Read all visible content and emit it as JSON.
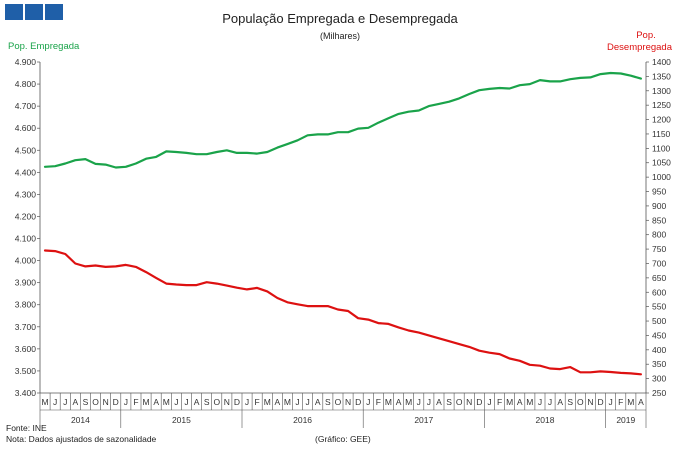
{
  "chart_data": {
    "type": "line",
    "title": "População Empregada e Desempregada",
    "subtitle": "(Milhares)",
    "left_axis_label": "Pop. Empregada",
    "right_axis_label_line1": "Pop.",
    "right_axis_label_line2": "Desempregada",
    "left_ylim": [
      3400,
      4900
    ],
    "left_ticks": [
      "3.400",
      "3.500",
      "3.600",
      "3.700",
      "3.800",
      "3.900",
      "4.000",
      "4.100",
      "4.200",
      "4.300",
      "4.400",
      "4.500",
      "4.600",
      "4.700",
      "4.800",
      "4.900"
    ],
    "right_ylim": [
      250,
      1400
    ],
    "right_ticks": [
      "250",
      "300",
      "350",
      "400",
      "450",
      "500",
      "550",
      "600",
      "650",
      "700",
      "750",
      "800",
      "850",
      "900",
      "950",
      "1000",
      "1050",
      "1100",
      "1150",
      "1200",
      "1250",
      "1300",
      "1350",
      "1400"
    ],
    "months": [
      "M",
      "J",
      "J",
      "A",
      "S",
      "O",
      "N",
      "D",
      "J",
      "F",
      "M",
      "A",
      "M",
      "J",
      "J",
      "A",
      "S",
      "O",
      "N",
      "D",
      "J",
      "F",
      "M",
      "A",
      "M",
      "J",
      "J",
      "A",
      "S",
      "O",
      "N",
      "D",
      "J",
      "F",
      "M",
      "A",
      "M",
      "J",
      "J",
      "A",
      "S",
      "O",
      "N",
      "D",
      "J",
      "F",
      "M",
      "A",
      "M",
      "J",
      "J",
      "A",
      "S",
      "O",
      "N",
      "D",
      "J",
      "F",
      "M",
      "A"
    ],
    "years": [
      {
        "label": "2014",
        "start": 0,
        "end": 7
      },
      {
        "label": "2015",
        "start": 8,
        "end": 19
      },
      {
        "label": "2016",
        "start": 20,
        "end": 31
      },
      {
        "label": "2017",
        "start": 32,
        "end": 43
      },
      {
        "label": "2018",
        "start": 44,
        "end": 55
      },
      {
        "label": "2019",
        "start": 56,
        "end": 59
      }
    ],
    "series": [
      {
        "name": "Pop. Empregada",
        "axis": "left",
        "color": "#1aa34a",
        "values": [
          4425,
          4428,
          4440,
          4455,
          4460,
          4438,
          4435,
          4422,
          4425,
          4440,
          4462,
          4470,
          4495,
          4492,
          4488,
          4482,
          4482,
          4492,
          4500,
          4488,
          4488,
          4485,
          4492,
          4512,
          4528,
          4545,
          4568,
          4572,
          4572,
          4582,
          4582,
          4598,
          4602,
          4625,
          4645,
          4665,
          4675,
          4680,
          4700,
          4710,
          4720,
          4735,
          4755,
          4772,
          4778,
          4782,
          4780,
          4795,
          4800,
          4818,
          4812,
          4812,
          4822,
          4828,
          4830,
          4845,
          4850,
          4848,
          4838,
          4825
        ]
      },
      {
        "name": "Pop. Desempregada",
        "axis": "right",
        "color": "#dd1111",
        "values": [
          745,
          743,
          733,
          700,
          690,
          693,
          688,
          690,
          695,
          688,
          670,
          650,
          630,
          627,
          625,
          625,
          635,
          630,
          623,
          616,
          610,
          615,
          603,
          580,
          565,
          558,
          552,
          552,
          552,
          540,
          535,
          510,
          505,
          493,
          490,
          478,
          467,
          460,
          450,
          440,
          430,
          420,
          410,
          397,
          390,
          385,
          370,
          362,
          348,
          345,
          335,
          333,
          340,
          322,
          322,
          325,
          323,
          320,
          318,
          315
        ]
      }
    ],
    "x_ticks_count": 60,
    "source_note": "Fonte: INE",
    "adjust_note": "Nota: Dados ajustados de sazonalidade",
    "credit_note": "(Gráfico: GEE)"
  }
}
